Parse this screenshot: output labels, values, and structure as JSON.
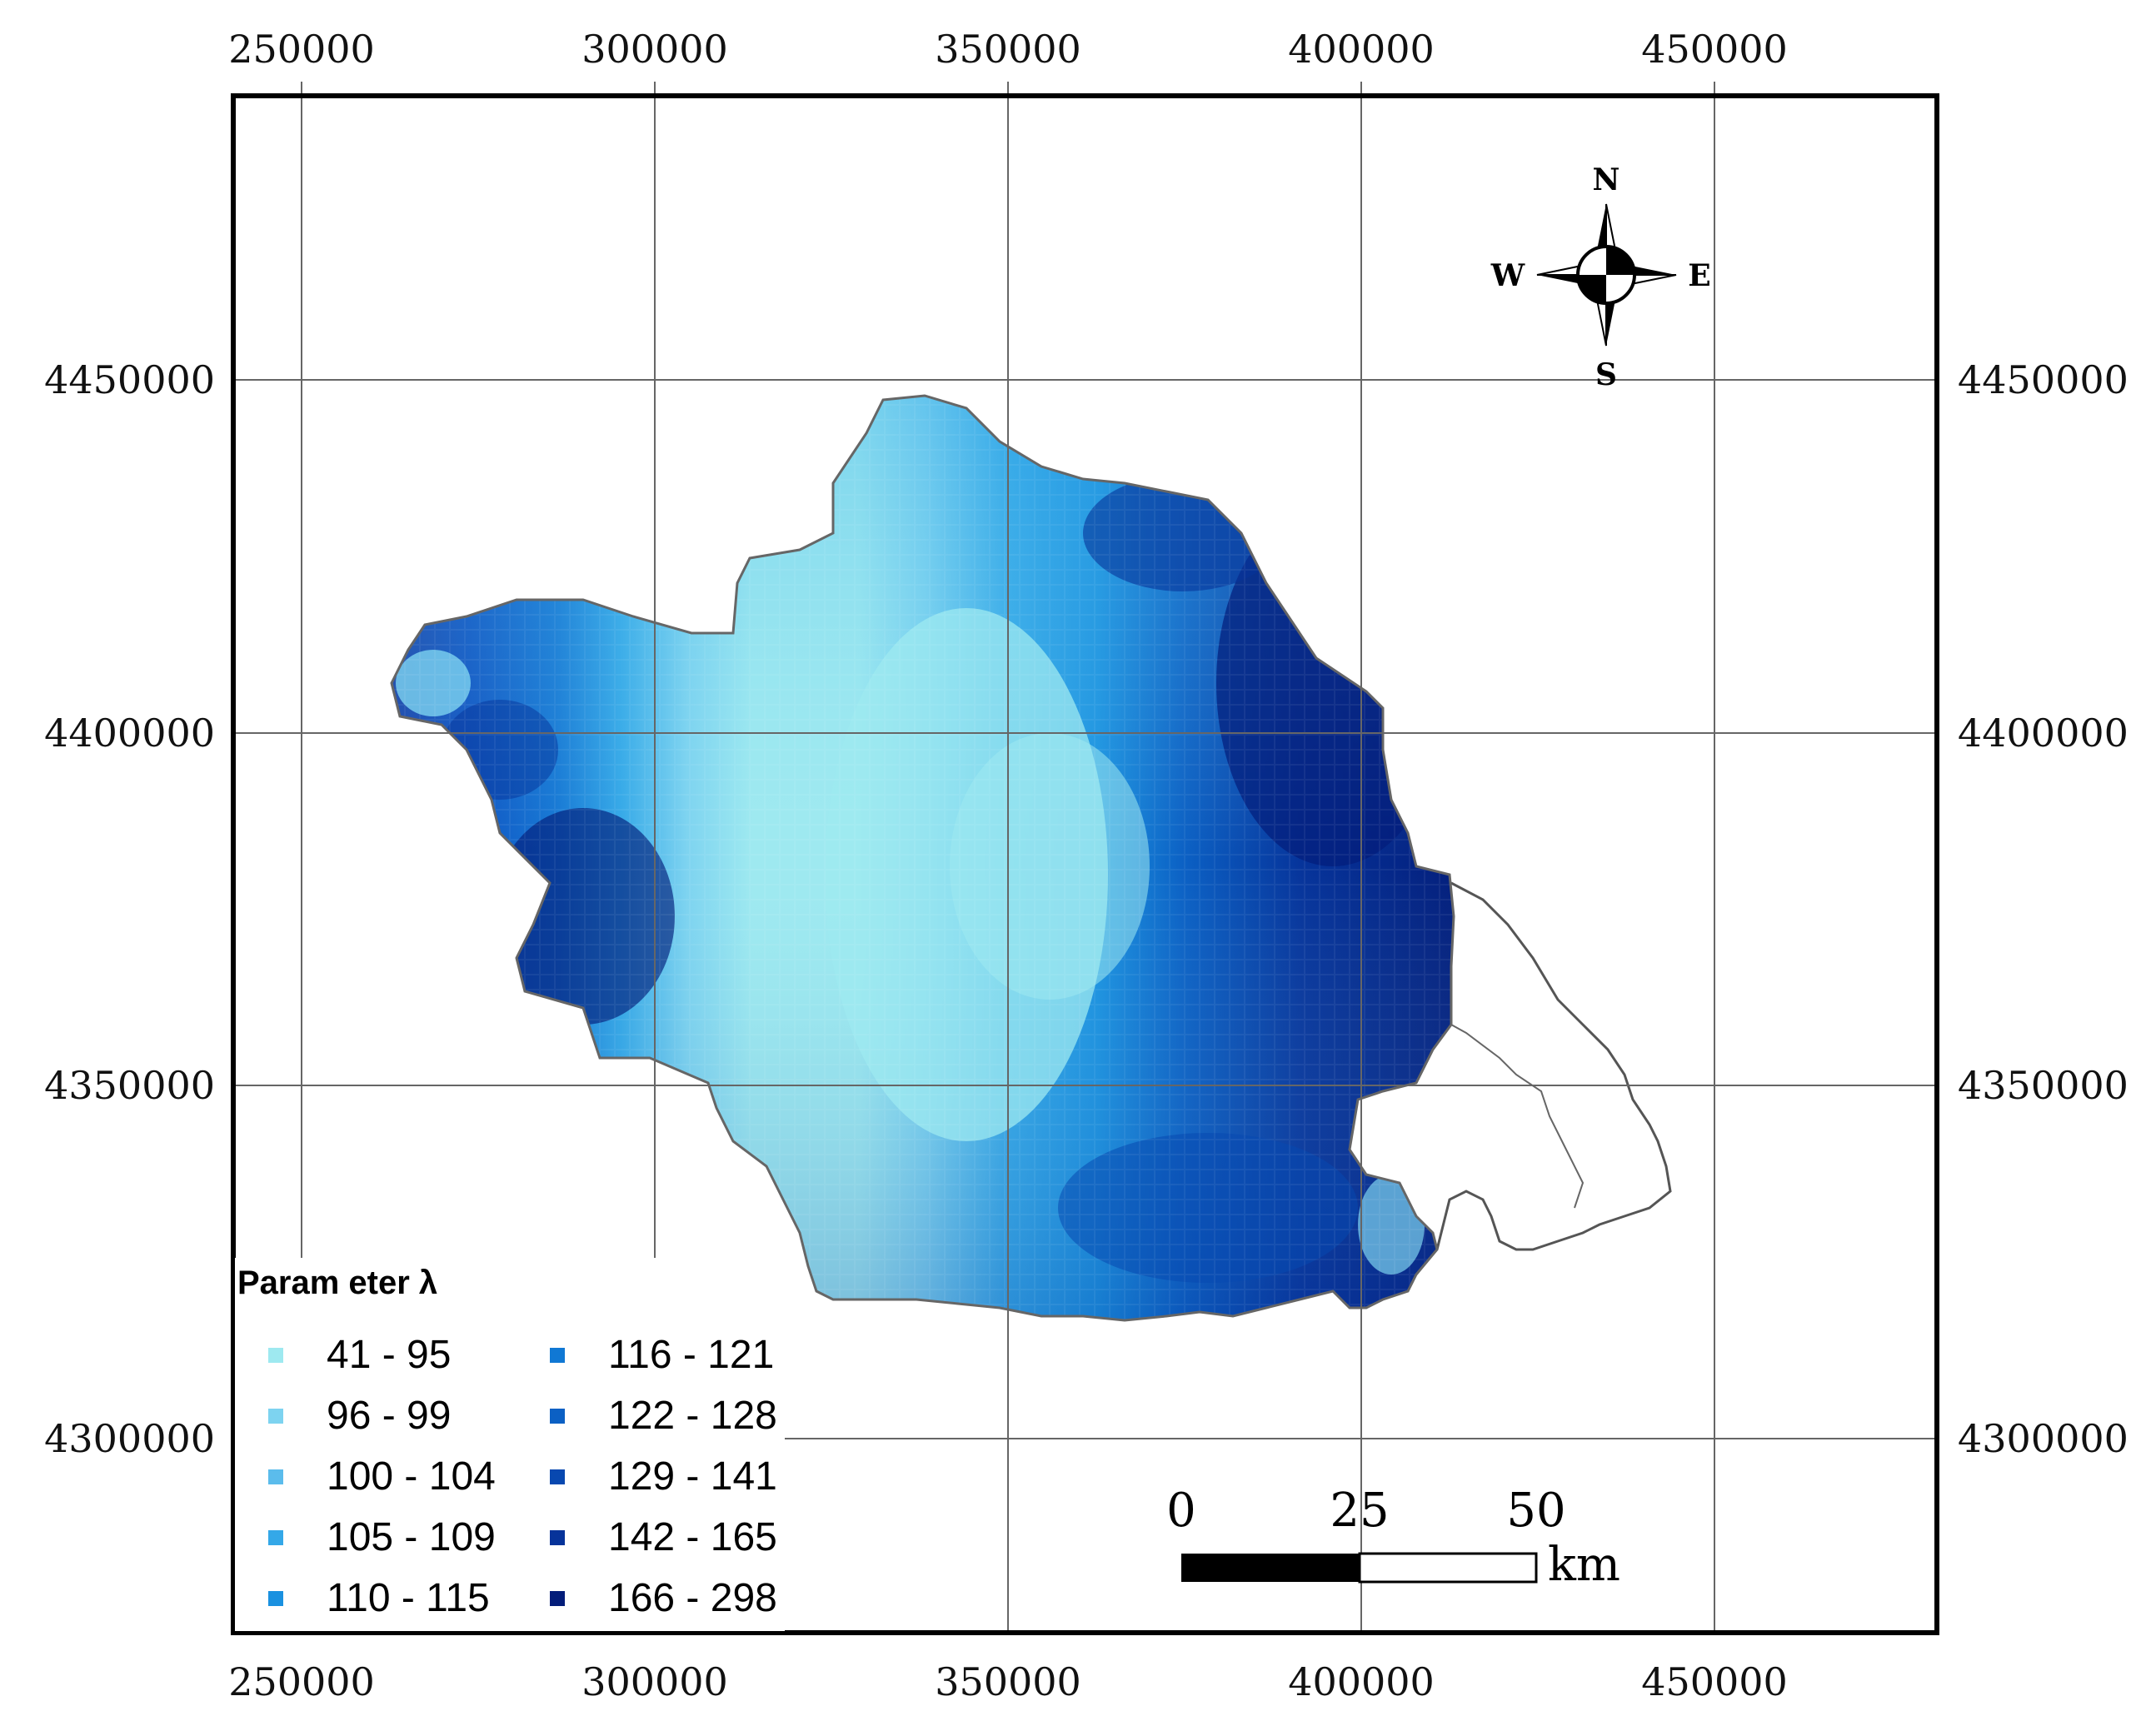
{
  "map": {
    "x_ticks": [
      "250000",
      "300000",
      "350000",
      "400000",
      "450000"
    ],
    "y_ticks": [
      "4450000",
      "4400000",
      "4350000",
      "4300000"
    ],
    "compass": {
      "n": "N",
      "e": "E",
      "s": "S",
      "w": "W"
    },
    "legend": {
      "title": "Param eter λ",
      "classes": [
        {
          "label": "41 - 95",
          "color": "#9ee9f0"
        },
        {
          "label": "96 - 99",
          "color": "#7dd3f0"
        },
        {
          "label": "100 - 104",
          "color": "#5bbcec"
        },
        {
          "label": "105 - 109",
          "color": "#34a8e8"
        },
        {
          "label": "110 - 115",
          "color": "#1a91e0"
        },
        {
          "label": "116 - 121",
          "color": "#1078d4"
        },
        {
          "label": "122 - 128",
          "color": "#0b60c4"
        },
        {
          "label": "129 - 141",
          "color": "#0848b0"
        },
        {
          "label": "142 - 165",
          "color": "#06339a"
        },
        {
          "label": "166 - 298",
          "color": "#031d7a"
        }
      ]
    },
    "scale_bar": {
      "labels": [
        "0",
        "25",
        "50"
      ],
      "unit": "km"
    }
  }
}
